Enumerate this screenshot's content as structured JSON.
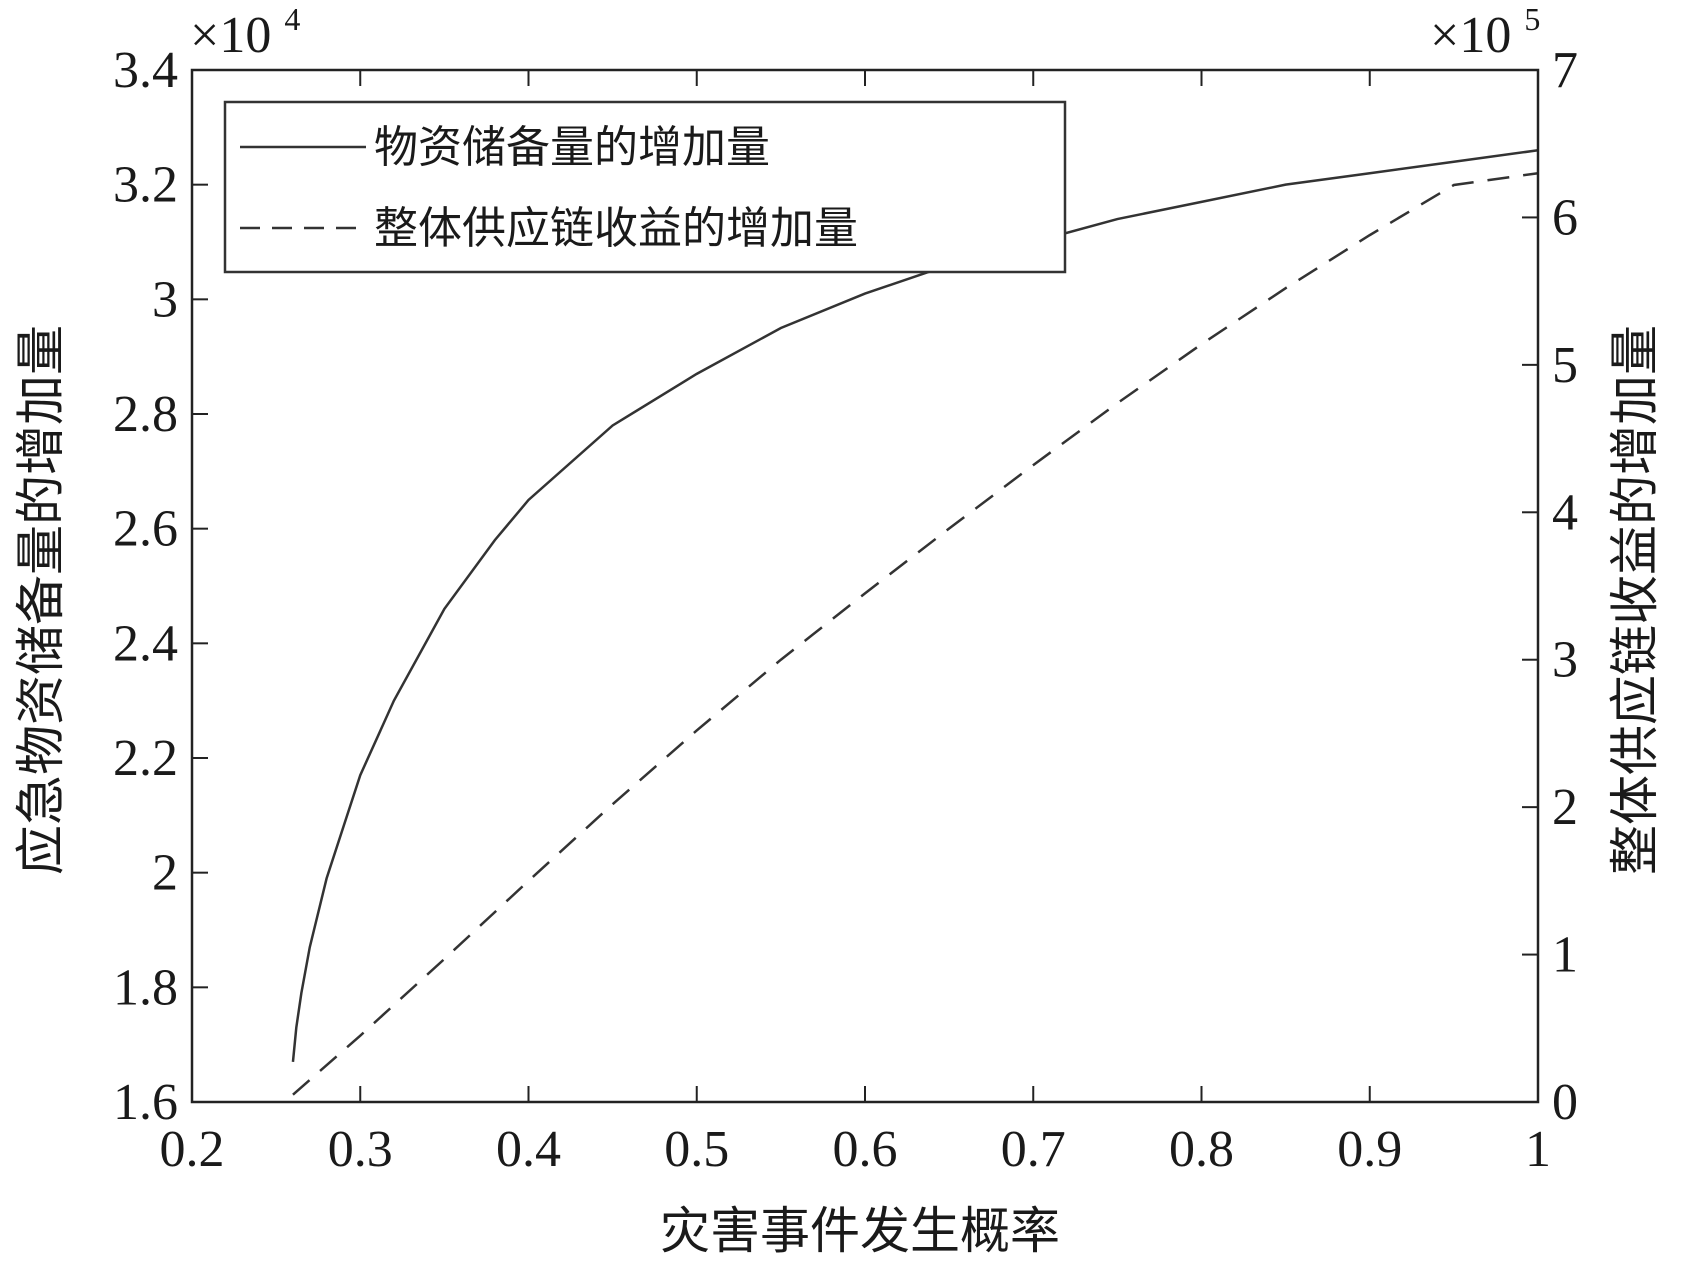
{
  "chart_data": {
    "type": "line",
    "xlabel": "灾害事件发生概率",
    "ylabel_left": "应急物资储备量的增加量",
    "ylabel_right": "整体供应链收益的增加量",
    "xlim": [
      0.2,
      1.0
    ],
    "ylim_left": [
      1.6,
      3.4
    ],
    "ylim_right": [
      0,
      7
    ],
    "x_ticks": [
      "0.2",
      "0.3",
      "0.4",
      "0.5",
      "0.6",
      "0.7",
      "0.8",
      "0.9",
      "1"
    ],
    "y_left_ticks": [
      "1.6",
      "1.8",
      "2",
      "2.2",
      "2.4",
      "2.6",
      "2.8",
      "3",
      "3.2",
      "3.4"
    ],
    "y_right_ticks": [
      "0",
      "1",
      "2",
      "3",
      "4",
      "5",
      "6",
      "7"
    ],
    "left_multiplier": {
      "base": "×10",
      "exp": "4"
    },
    "right_multiplier": {
      "base": "×10",
      "exp": "5"
    },
    "grid": false,
    "legend_position": "top-left",
    "series": [
      {
        "name": "物资储备量的增加量",
        "axis": "left",
        "style": "solid",
        "color": "#333333",
        "x": [
          0.26,
          0.262,
          0.265,
          0.27,
          0.28,
          0.29,
          0.3,
          0.32,
          0.35,
          0.38,
          0.4,
          0.45,
          0.5,
          0.55,
          0.6,
          0.65,
          0.7,
          0.75,
          0.8,
          0.85,
          0.9,
          0.95,
          1.0
        ],
        "values": [
          1.67,
          1.73,
          1.79,
          1.87,
          1.99,
          2.08,
          2.17,
          2.3,
          2.46,
          2.58,
          2.65,
          2.78,
          2.87,
          2.95,
          3.01,
          3.06,
          3.1,
          3.14,
          3.17,
          3.2,
          3.22,
          3.24,
          3.26
        ]
      },
      {
        "name": "整体供应链收益的增加量",
        "axis": "right",
        "style": "dashed",
        "color": "#333333",
        "x": [
          0.26,
          0.3,
          0.35,
          0.4,
          0.45,
          0.5,
          0.55,
          0.6,
          0.65,
          0.7,
          0.75,
          0.8,
          0.85,
          0.9,
          0.95,
          1.0
        ],
        "values": [
          0.05,
          0.45,
          0.97,
          1.5,
          2.02,
          2.52,
          3.0,
          3.45,
          3.89,
          4.32,
          4.74,
          5.14,
          5.52,
          5.88,
          6.22,
          6.3
        ]
      }
    ]
  }
}
